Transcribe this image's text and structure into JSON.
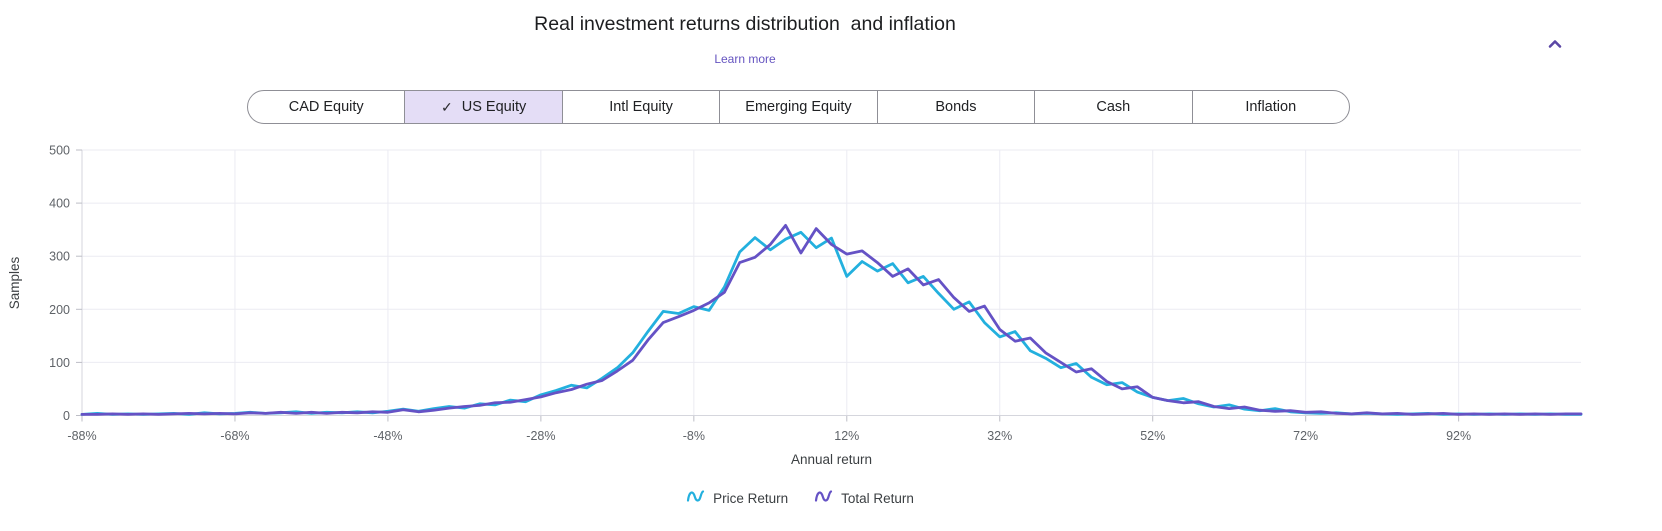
{
  "header": {
    "title": "Real investment returns distribution  and inflation",
    "learn_more_label": "Learn more",
    "collapse_icon_color": "#5b47a5"
  },
  "tabs": {
    "selected_icon": "✓",
    "items": [
      {
        "label": "CAD Equity",
        "selected": false
      },
      {
        "label": "US Equity",
        "selected": true
      },
      {
        "label": "Intl Equity",
        "selected": false
      },
      {
        "label": "Emerging Equity",
        "selected": false
      },
      {
        "label": "Bonds",
        "selected": false
      },
      {
        "label": "Cash",
        "selected": false
      },
      {
        "label": "Inflation",
        "selected": false
      }
    ]
  },
  "chart_data": {
    "type": "line",
    "title": "Real investment returns distribution  and inflation",
    "xlabel": "Annual return",
    "ylabel": "Samples",
    "xlim": [
      -88,
      108
    ],
    "ylim": [
      0,
      500
    ],
    "grid": true,
    "legend_position": "bottom",
    "colors": {
      "grid": "#ebebf2",
      "axis": "#d5d6dd",
      "tick_mark": "#bdbec6",
      "tick_text": "#5f6368"
    },
    "y_ticks": [
      {
        "value": 0,
        "label": "0"
      },
      {
        "value": 100,
        "label": "100"
      },
      {
        "value": 200,
        "label": "200"
      },
      {
        "value": 300,
        "label": "300"
      },
      {
        "value": 400,
        "label": "400"
      },
      {
        "value": 500,
        "label": "500"
      }
    ],
    "x_ticks": [
      {
        "value": -88,
        "label": "-88%"
      },
      {
        "value": -68,
        "label": "-68%"
      },
      {
        "value": -48,
        "label": "-48%"
      },
      {
        "value": -28,
        "label": "-28%"
      },
      {
        "value": -8,
        "label": "-8%"
      },
      {
        "value": 12,
        "label": "12%"
      },
      {
        "value": 32,
        "label": "32%"
      },
      {
        "value": 52,
        "label": "52%"
      },
      {
        "value": 72,
        "label": "72%"
      },
      {
        "value": 92,
        "label": "92%"
      }
    ],
    "x": [
      -88,
      -86,
      -84,
      -82,
      -80,
      -78,
      -76,
      -74,
      -72,
      -70,
      -68,
      -66,
      -64,
      -62,
      -60,
      -58,
      -56,
      -54,
      -52,
      -50,
      -48,
      -46,
      -44,
      -42,
      -40,
      -38,
      -36,
      -34,
      -32,
      -30,
      -28,
      -26,
      -24,
      -22,
      -20,
      -18,
      -16,
      -14,
      -12,
      -10,
      -8,
      -6,
      -4,
      -2,
      0,
      2,
      4,
      6,
      8,
      10,
      12,
      14,
      16,
      18,
      20,
      22,
      24,
      26,
      28,
      30,
      32,
      34,
      36,
      38,
      40,
      42,
      44,
      46,
      48,
      50,
      52,
      54,
      56,
      58,
      60,
      62,
      64,
      66,
      68,
      70,
      72,
      74,
      76,
      78,
      80,
      82,
      84,
      86,
      88,
      90,
      92,
      94,
      96,
      98,
      100,
      102,
      104,
      106,
      108
    ],
    "series": [
      {
        "name": "Price Return",
        "color": "#23b0de",
        "values": [
          2,
          4,
          2,
          3,
          2,
          3,
          4,
          2,
          5,
          3,
          4,
          6,
          4,
          5,
          7,
          4,
          6,
          5,
          7,
          5,
          8,
          12,
          8,
          13,
          17,
          14,
          22,
          20,
          29,
          26,
          39,
          47,
          57,
          52,
          70,
          90,
          118,
          158,
          196,
          192,
          205,
          198,
          242,
          308,
          335,
          312,
          332,
          345,
          316,
          334,
          262,
          290,
          272,
          286,
          250,
          262,
          230,
          200,
          214,
          175,
          148,
          158,
          122,
          108,
          90,
          98,
          72,
          58,
          62,
          44,
          34,
          28,
          32,
          22,
          16,
          20,
          12,
          9,
          13,
          7,
          5,
          4,
          5,
          3,
          4,
          3,
          2,
          3,
          4,
          2,
          3,
          2,
          3,
          2,
          3,
          2,
          3,
          2,
          2
        ]
      },
      {
        "name": "Total Return",
        "color": "#6552c5",
        "values": [
          2,
          2,
          3,
          2,
          3,
          2,
          3,
          4,
          3,
          4,
          3,
          5,
          4,
          6,
          4,
          6,
          4,
          6,
          5,
          7,
          6,
          11,
          7,
          10,
          14,
          17,
          19,
          24,
          25,
          30,
          35,
          43,
          49,
          59,
          66,
          84,
          104,
          142,
          175,
          186,
          198,
          212,
          232,
          288,
          298,
          322,
          358,
          306,
          352,
          322,
          304,
          310,
          288,
          262,
          276,
          246,
          256,
          222,
          196,
          206,
          162,
          140,
          146,
          118,
          100,
          82,
          88,
          64,
          50,
          54,
          34,
          28,
          24,
          26,
          17,
          13,
          16,
          10,
          8,
          9,
          6,
          7,
          4,
          3,
          5,
          3,
          4,
          2,
          3,
          4,
          2,
          3,
          2,
          3,
          2,
          3,
          2,
          3,
          3
        ]
      }
    ]
  }
}
